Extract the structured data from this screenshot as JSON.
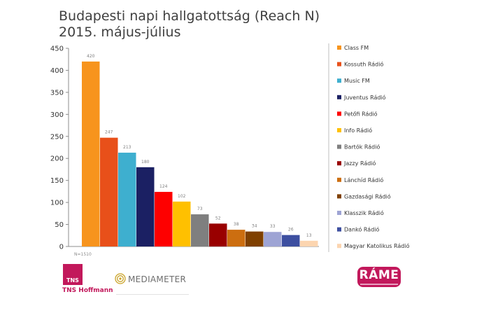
{
  "title_line1": "Budapesti napi hallgatottság (Reach N)",
  "title_line2": "2015. május-július",
  "note": "N=1510",
  "logos": {
    "tns_box": "TNS",
    "tns_name": "TNS Hoffmann",
    "mediameter": "MEDIAMETER",
    "rame": "RÁME"
  },
  "chart_data": {
    "type": "bar",
    "categories": [
      "Class FM",
      "Kossuth Rádió",
      "Music FM",
      "Juventus Rádió",
      "Petőfi Rádió",
      "Info Rádió",
      "Bartók Rádió",
      "Jazzy Rádió",
      "Lánchíd Rádió",
      "Gazdasági Rádió",
      "Klasszik Rádió",
      "Dankó Rádió",
      "Magyar Katolikus Rádió"
    ],
    "values": [
      420,
      247,
      213,
      180,
      124,
      102,
      73,
      52,
      38,
      34,
      33,
      26,
      13
    ],
    "colors": [
      "#f7941d",
      "#e8501a",
      "#3eafcf",
      "#1b2063",
      "#fe0000",
      "#ffc000",
      "#7f7f7f",
      "#990000",
      "#cc6e10",
      "#7f4000",
      "#9ea4d4",
      "#3d4fa0",
      "#fcd5b0"
    ],
    "yticks": [
      0,
      50,
      100,
      150,
      200,
      250,
      300,
      350,
      400,
      450
    ],
    "ylim": [
      0,
      450
    ],
    "legend_position": "right",
    "grid": false
  }
}
